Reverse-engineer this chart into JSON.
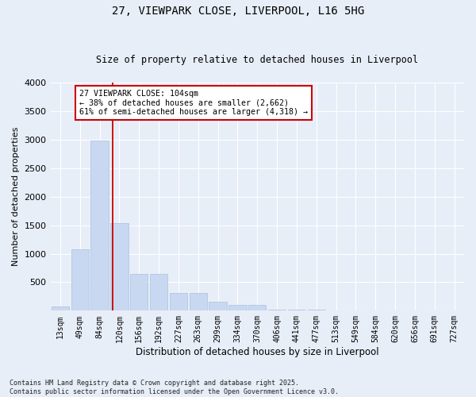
{
  "title_line1": "27, VIEWPARK CLOSE, LIVERPOOL, L16 5HG",
  "title_line2": "Size of property relative to detached houses in Liverpool",
  "xlabel": "Distribution of detached houses by size in Liverpool",
  "ylabel": "Number of detached properties",
  "bar_color": "#c8d8f0",
  "bar_edge_color": "#a8c0e0",
  "background_color": "#e8eef8",
  "fig_background_color": "#e8eef8",
  "grid_color": "#ffffff",
  "categories": [
    "13sqm",
    "49sqm",
    "84sqm",
    "120sqm",
    "156sqm",
    "192sqm",
    "227sqm",
    "263sqm",
    "299sqm",
    "334sqm",
    "370sqm",
    "406sqm",
    "441sqm",
    "477sqm",
    "513sqm",
    "549sqm",
    "584sqm",
    "620sqm",
    "656sqm",
    "691sqm",
    "727sqm"
  ],
  "values": [
    75,
    1080,
    2980,
    1530,
    650,
    650,
    310,
    310,
    160,
    100,
    100,
    20,
    20,
    20,
    0,
    0,
    0,
    0,
    0,
    0,
    0
  ],
  "ylim": [
    0,
    4000
  ],
  "yticks": [
    0,
    500,
    1000,
    1500,
    2000,
    2500,
    3000,
    3500,
    4000
  ],
  "vline_x": 2.67,
  "annotation_text": "27 VIEWPARK CLOSE: 104sqm\n← 38% of detached houses are smaller (2,662)\n61% of semi-detached houses are larger (4,318) →",
  "annotation_box_color": "#ffffff",
  "annotation_box_edge": "#cc0000",
  "vline_color": "#cc0000",
  "footnote": "Contains HM Land Registry data © Crown copyright and database right 2025.\nContains public sector information licensed under the Open Government Licence v3.0."
}
